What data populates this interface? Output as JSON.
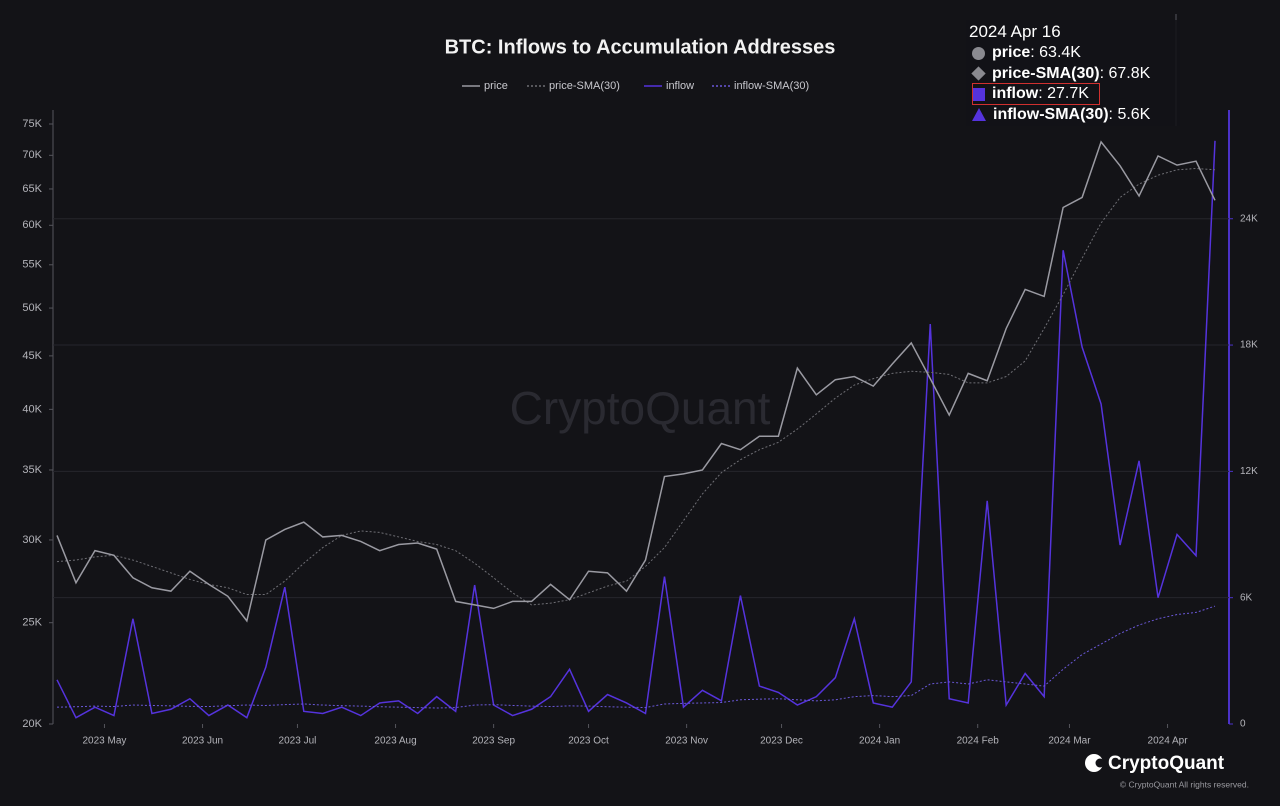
{
  "chart_data": {
    "type": "line",
    "title": "BTC: Inflows to Accumulation Addresses",
    "log_scale": true,
    "grid": true,
    "x": [
      "2023-04-16",
      "2023-04-22",
      "2023-04-28",
      "2023-05-04",
      "2023-05-10",
      "2023-05-16",
      "2023-05-22",
      "2023-05-28",
      "2023-06-03",
      "2023-06-09",
      "2023-06-15",
      "2023-06-21",
      "2023-06-27",
      "2023-07-03",
      "2023-07-09",
      "2023-07-15",
      "2023-07-21",
      "2023-07-27",
      "2023-08-02",
      "2023-08-08",
      "2023-08-14",
      "2023-08-20",
      "2023-08-26",
      "2023-09-01",
      "2023-09-07",
      "2023-09-13",
      "2023-09-19",
      "2023-09-25",
      "2023-10-01",
      "2023-10-07",
      "2023-10-13",
      "2023-10-19",
      "2023-10-25",
      "2023-10-31",
      "2023-11-06",
      "2023-11-12",
      "2023-11-18",
      "2023-11-24",
      "2023-11-30",
      "2023-12-06",
      "2023-12-12",
      "2023-12-18",
      "2023-12-24",
      "2023-12-30",
      "2024-01-05",
      "2024-01-11",
      "2024-01-17",
      "2024-01-23",
      "2024-01-29",
      "2024-02-04",
      "2024-02-10",
      "2024-02-16",
      "2024-02-22",
      "2024-02-28",
      "2024-03-05",
      "2024-03-11",
      "2024-03-17",
      "2024-03-23",
      "2024-03-29",
      "2024-04-04",
      "2024-04-10",
      "2024-04-16"
    ],
    "series": [
      {
        "name": "price",
        "color": "#9a9aa2",
        "style": "solid",
        "axis": "y",
        "values": [
          30300,
          27300,
          29300,
          29000,
          27600,
          27000,
          26800,
          28000,
          27200,
          26500,
          25100,
          30000,
          30700,
          31200,
          30200,
          30300,
          29900,
          29300,
          29700,
          29800,
          29400,
          26200,
          26000,
          25800,
          26200,
          26200,
          27200,
          26300,
          28000,
          27900,
          26800,
          28700,
          34500,
          34700,
          35000,
          37100,
          36600,
          37700,
          37700,
          43800,
          41300,
          42700,
          43000,
          42100,
          44200,
          46300,
          42800,
          39500,
          43300,
          42600,
          47800,
          52100,
          51300,
          62400,
          63800,
          72100,
          68400,
          64000,
          69900,
          68500,
          69100,
          63400
        ]
      },
      {
        "name": "price-SMA(30)",
        "color": "#6e6e74",
        "style": "dotted",
        "axis": "y",
        "values": [
          28600,
          28700,
          28900,
          29000,
          28700,
          28300,
          27900,
          27500,
          27200,
          27000,
          26600,
          26600,
          27400,
          28500,
          29500,
          30300,
          30600,
          30500,
          30200,
          29900,
          29700,
          29300,
          28500,
          27600,
          26700,
          26000,
          26100,
          26300,
          26700,
          27100,
          27400,
          28300,
          29500,
          31300,
          33200,
          34800,
          35800,
          36600,
          37200,
          38300,
          39600,
          41000,
          42200,
          42800,
          43300,
          43500,
          43400,
          43200,
          42400,
          42400,
          43000,
          44500,
          47800,
          51500,
          55800,
          60300,
          63800,
          65700,
          67000,
          67800,
          68000,
          67800
        ]
      },
      {
        "name": "inflow",
        "color": "#5533dd",
        "style": "solid",
        "axis": "y2",
        "values": [
          2100,
          300,
          800,
          400,
          5000,
          500,
          700,
          1200,
          400,
          900,
          300,
          2700,
          6500,
          600,
          500,
          800,
          400,
          1000,
          1100,
          500,
          1300,
          600,
          6600,
          900,
          400,
          700,
          1300,
          2600,
          600,
          1400,
          1000,
          500,
          7000,
          800,
          1600,
          1100,
          6100,
          1800,
          1500,
          900,
          1300,
          2200,
          5000,
          1000,
          800,
          2000,
          19000,
          1200,
          1000,
          10600,
          900,
          2400,
          1300,
          22500,
          17900,
          15200,
          8500,
          12500,
          6000,
          9000,
          8000,
          27700
        ]
      },
      {
        "name": "inflow-SMA(30)",
        "color": "#6a58d8",
        "style": "dotted",
        "axis": "y2",
        "values": [
          800,
          820,
          850,
          830,
          900,
          880,
          860,
          840,
          830,
          870,
          900,
          880,
          920,
          950,
          900,
          870,
          850,
          820,
          800,
          780,
          760,
          780,
          900,
          920,
          880,
          850,
          830,
          860,
          850,
          820,
          800,
          780,
          950,
          980,
          1000,
          1020,
          1150,
          1180,
          1200,
          1150,
          1100,
          1150,
          1300,
          1350,
          1300,
          1350,
          1900,
          2000,
          1900,
          2100,
          2000,
          1900,
          1800,
          2600,
          3300,
          3800,
          4300,
          4700,
          5000,
          5200,
          5300,
          5600
        ]
      }
    ],
    "ylim": [
      20000,
      75000
    ],
    "yticks": [
      {
        "value": 20000,
        "label": "20K"
      },
      {
        "value": 25000,
        "label": "25K"
      },
      {
        "value": 30000,
        "label": "30K"
      },
      {
        "value": 35000,
        "label": "35K"
      },
      {
        "value": 40000,
        "label": "40K"
      },
      {
        "value": 45000,
        "label": "45K"
      },
      {
        "value": 50000,
        "label": "50K"
      },
      {
        "value": 55000,
        "label": "55K"
      },
      {
        "value": 60000,
        "label": "60K"
      },
      {
        "value": 65000,
        "label": "65K"
      },
      {
        "value": 70000,
        "label": "70K"
      },
      {
        "value": 75000,
        "label": "75K"
      }
    ],
    "y2lim": [
      0,
      28500
    ],
    "y2ticks": [
      0,
      {
        "value": 6000,
        "label": "6K"
      },
      {
        "value": 12000,
        "label": "12K"
      },
      {
        "value": 18000,
        "label": "18K"
      },
      {
        "value": 24000,
        "label": "24K"
      }
    ],
    "xticks": [
      {
        "value": "2023-05-01",
        "label": "2023 May"
      },
      {
        "value": "2023-06-01",
        "label": "2023 Jun"
      },
      {
        "value": "2023-07-01",
        "label": "2023 Jul"
      },
      {
        "value": "2023-08-01",
        "label": "2023 Aug"
      },
      {
        "value": "2023-09-01",
        "label": "2023 Sep"
      },
      {
        "value": "2023-10-01",
        "label": "2023 Oct"
      },
      {
        "value": "2023-11-01",
        "label": "2023 Nov"
      },
      {
        "value": "2023-12-01",
        "label": "2023 Dec"
      },
      {
        "value": "2024-01-01",
        "label": "2024 Jan"
      },
      {
        "value": "2024-02-01",
        "label": "2024 Feb"
      },
      {
        "value": "2024-03-01",
        "label": "2024 Mar"
      },
      {
        "value": "2024-04-01",
        "label": "2024 Apr"
      }
    ],
    "tooltip": {
      "date": "2024 Apr 16",
      "value_labels": [
        "63.4K",
        "67.8K",
        "27.7K",
        "5.6K"
      ]
    },
    "watermark": "CryptoQuant",
    "brand": "CryptoQuant",
    "copyright": "© CryptoQuant All rights reserved."
  }
}
